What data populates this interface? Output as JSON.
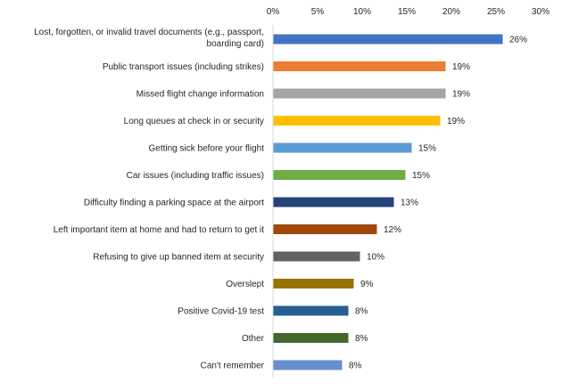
{
  "chart_data": {
    "type": "bar",
    "orientation": "horizontal",
    "title": "",
    "xlabel": "",
    "ylabel": "",
    "xlim": [
      0,
      30
    ],
    "x_ticks": [
      "0%",
      "5%",
      "10%",
      "15%",
      "20%",
      "25%",
      "30%"
    ],
    "x_axis_position": "top",
    "grid": false,
    "legend": "none",
    "categories": [
      [
        "Lost, forgotten, or invalid travel documents (e.g., passport,",
        "boarding card)"
      ],
      [
        "Public transport issues (including strikes)"
      ],
      [
        "Missed flight change information"
      ],
      [
        "Long queues at check in or security"
      ],
      [
        "Getting sick before your flight"
      ],
      [
        "Car issues (including traffic issues)"
      ],
      [
        "Difficulty finding a parking space at the airport"
      ],
      [
        "Left important item at home and had to return to get it"
      ],
      [
        "Refusing to give up banned item at security"
      ],
      [
        "Overslept"
      ],
      [
        "Positive Covid-19 test"
      ],
      [
        "Other"
      ],
      [
        "Can't remember"
      ]
    ],
    "values": [
      26,
      19,
      19,
      19,
      15,
      15,
      13,
      12,
      10,
      9,
      8,
      8,
      8
    ],
    "bar_values": [
      25.7,
      19.3,
      19.3,
      18.7,
      15.5,
      14.8,
      13.5,
      11.6,
      9.7,
      9.0,
      8.4,
      8.4,
      7.7
    ],
    "data_labels": [
      "26%",
      "19%",
      "19%",
      "19%",
      "15%",
      "15%",
      "13%",
      "12%",
      "10%",
      "9%",
      "8%",
      "8%",
      "8%"
    ],
    "colors": [
      "#4472C4",
      "#ED7D31",
      "#A5A5A5",
      "#FFC000",
      "#5B9BD5",
      "#70AD47",
      "#264478",
      "#9E480E",
      "#636363",
      "#997300",
      "#255E91",
      "#43682B",
      "#698ED0"
    ],
    "axis_color": "#D9D9D9"
  }
}
